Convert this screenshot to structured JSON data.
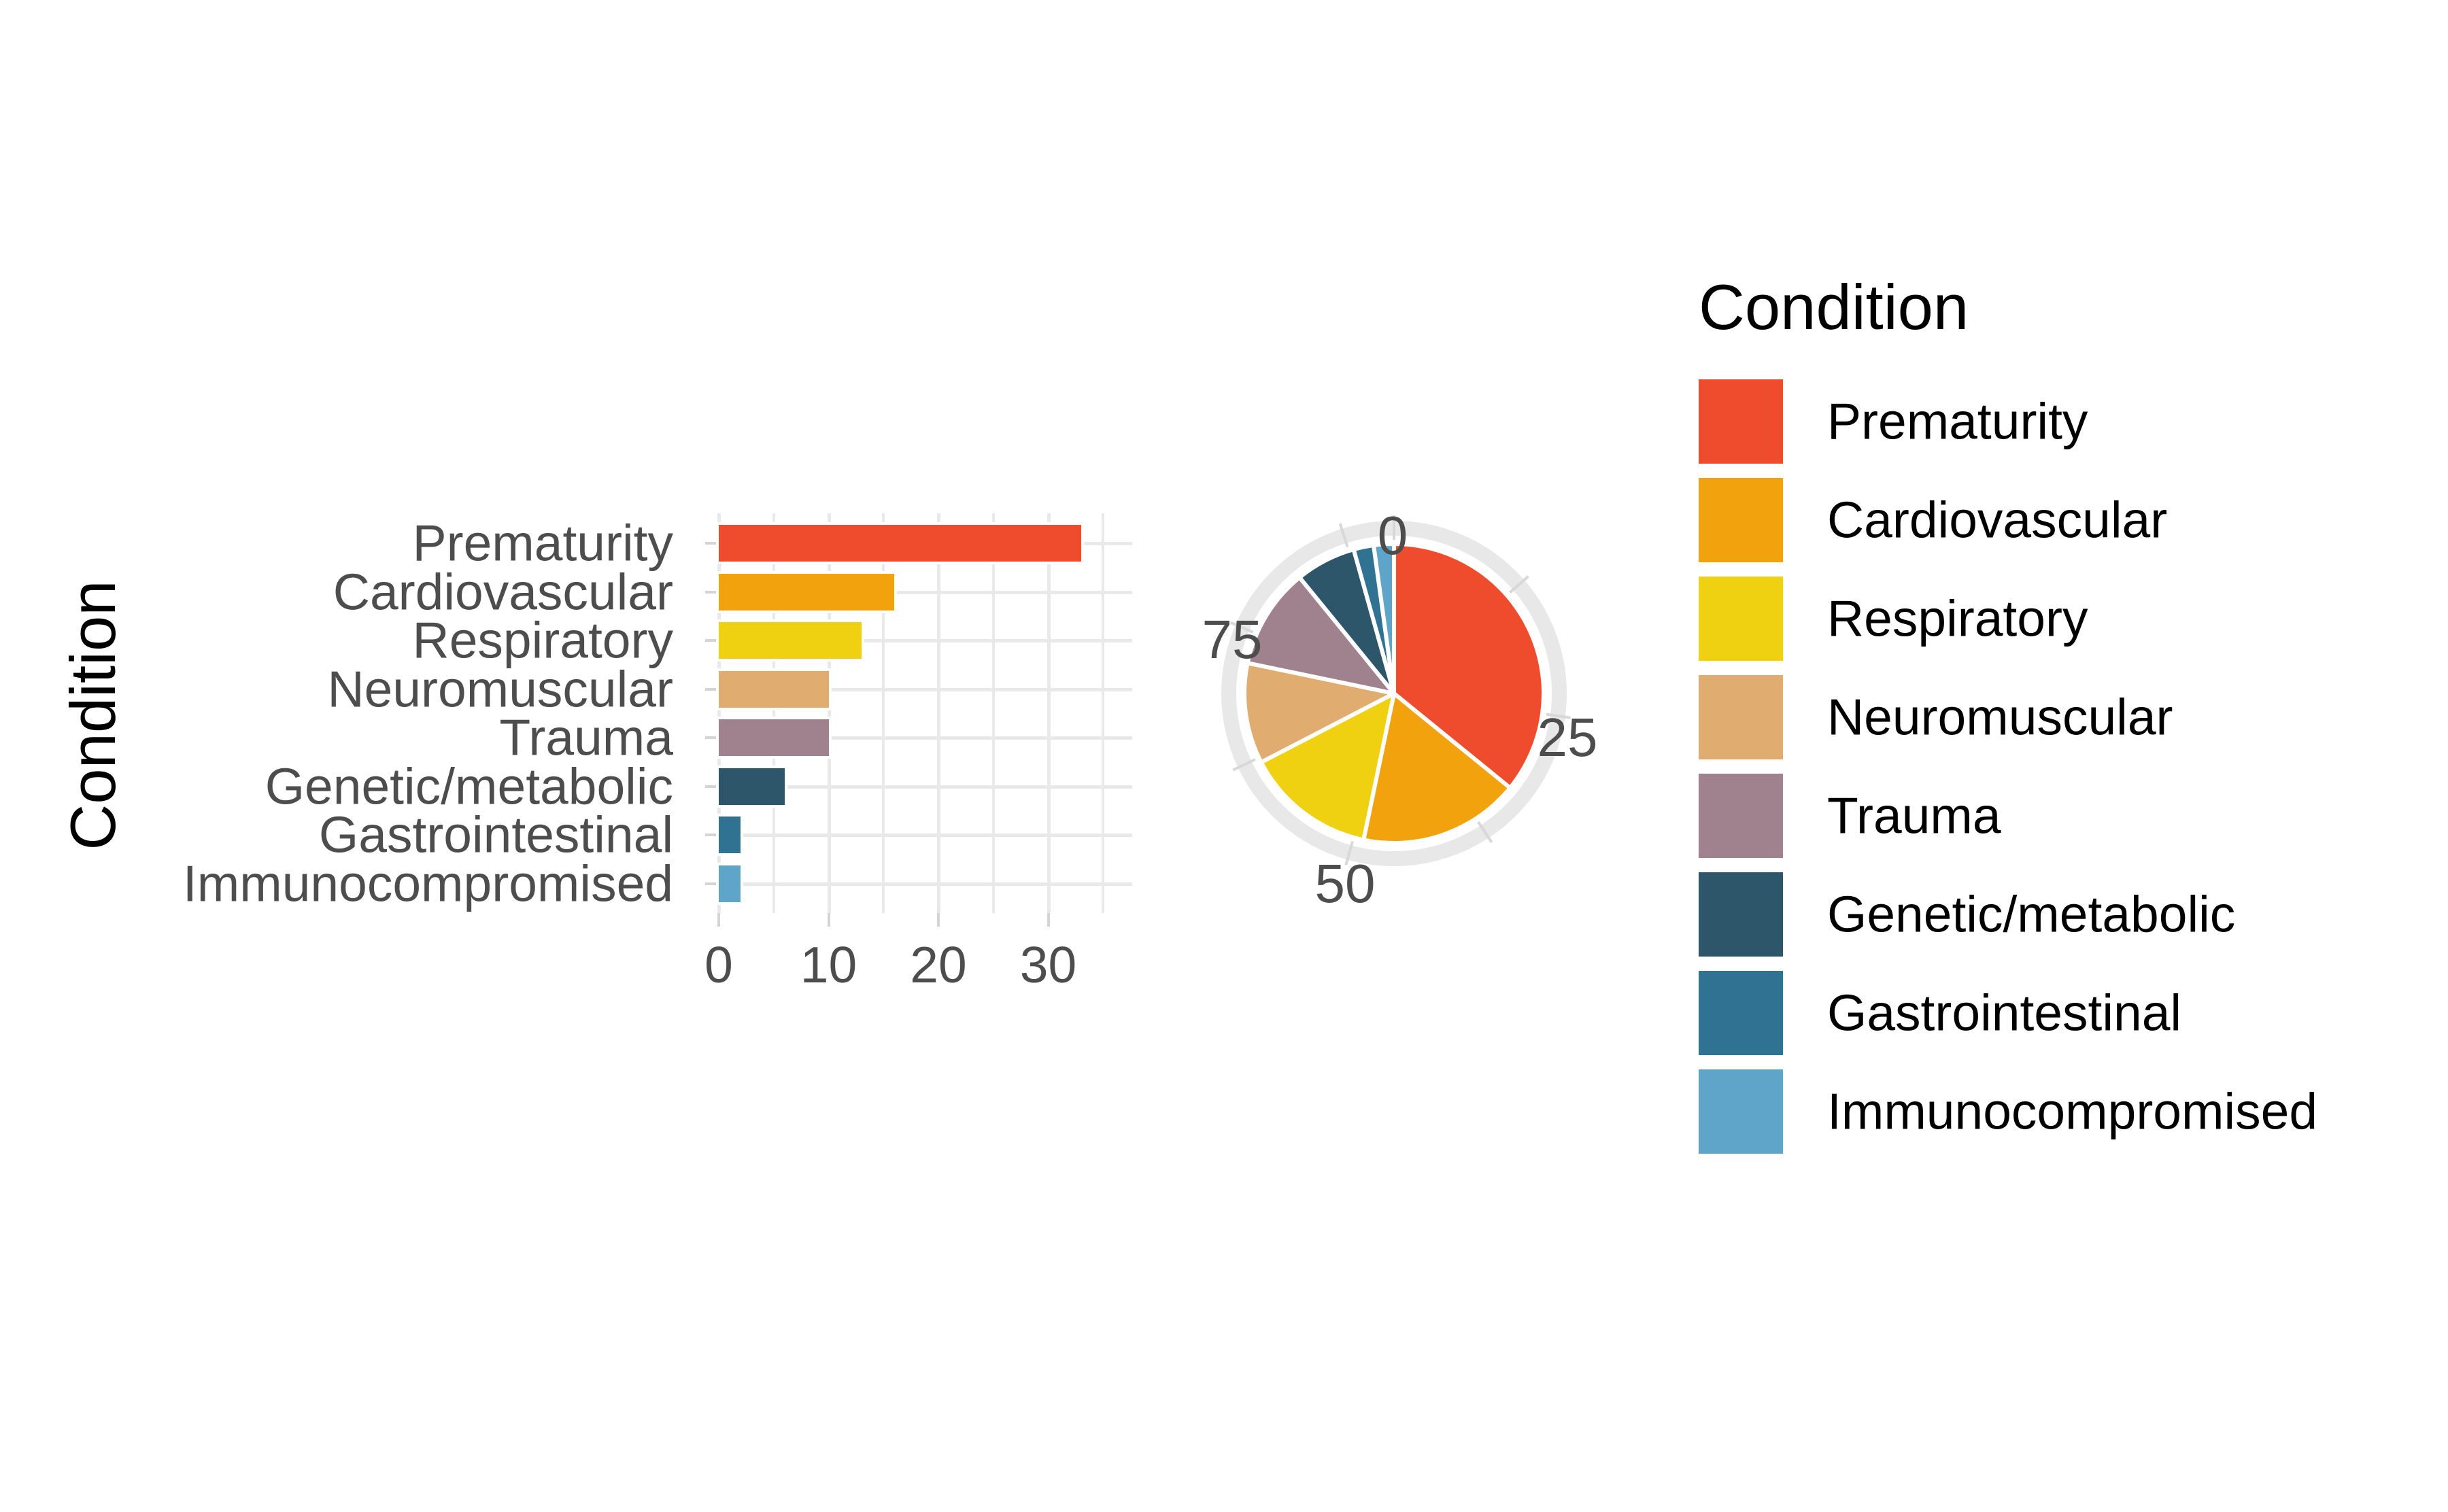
{
  "chart_data": [
    {
      "type": "bar",
      "orientation": "horizontal",
      "title": "",
      "xlabel": "",
      "ylabel": "Condition",
      "categories": [
        "Prematurity",
        "Cardiovascular",
        "Respiratory",
        "Neuromuscular",
        "Trauma",
        "Genetic/metabolic",
        "Gastrointestinal",
        "Immunocompromised"
      ],
      "values": [
        33,
        16,
        13,
        10,
        10,
        6,
        2,
        2
      ],
      "colors": [
        "#ee4c2c",
        "#f2a20d",
        "#f0d112",
        "#e1ac70",
        "#9f828d",
        "#2e566b",
        "#2f7291",
        "#5fa5c9"
      ],
      "x_ticks": [
        0,
        10,
        20,
        30
      ],
      "x_minor_ticks": [
        5,
        15,
        25,
        35
      ],
      "xlim": [
        0,
        37.6
      ],
      "grid": true,
      "legend_position": "right-shared"
    },
    {
      "type": "pie",
      "title": "",
      "categories": [
        "Prematurity",
        "Cardiovascular",
        "Respiratory",
        "Neuromuscular",
        "Trauma",
        "Genetic/metabolic",
        "Gastrointestinal",
        "Immunocompromised"
      ],
      "values": [
        33,
        16,
        13,
        10,
        10,
        6,
        2,
        2
      ],
      "total": 92,
      "colors": [
        "#ee4c2c",
        "#f2a20d",
        "#f0d112",
        "#e1ac70",
        "#9f828d",
        "#2e566b",
        "#2f7291",
        "#5fa5c9"
      ],
      "start_angle_deg": 0,
      "direction": "clockwise",
      "axis_tick_labels": [
        "0",
        "25",
        "50",
        "75"
      ],
      "axis_tick_values": [
        0,
        25,
        50,
        75
      ],
      "axis_minor_tick_values": [
        12.5,
        37.5,
        62.5,
        87.5
      ]
    }
  ],
  "bar_axis": {
    "y_title": "Condition",
    "x_tick_labels": [
      "0",
      "10",
      "20",
      "30"
    ]
  },
  "legend": {
    "title": "Condition",
    "items": [
      {
        "label": "Prematurity",
        "color": "#ee4c2c"
      },
      {
        "label": "Cardiovascular",
        "color": "#f2a20d"
      },
      {
        "label": "Respiratory",
        "color": "#f0d112"
      },
      {
        "label": "Neuromuscular",
        "color": "#e1ac70"
      },
      {
        "label": "Trauma",
        "color": "#9f828d"
      },
      {
        "label": "Genetic/metabolic",
        "color": "#2e566b"
      },
      {
        "label": "Gastrointestinal",
        "color": "#2f7291"
      },
      {
        "label": "Immunocompromised",
        "color": "#5fa5c9"
      }
    ]
  },
  "styles": {
    "background": "#ffffff",
    "axis_text_color": "#4d4d4d",
    "title_color": "#000000",
    "gridline_color": "#e9e9e9",
    "axis_tick_color": "#d4d4d4",
    "pie_ring_color": "#e8e8e8",
    "pie_ring_tick_color": "#d8d8d8"
  }
}
